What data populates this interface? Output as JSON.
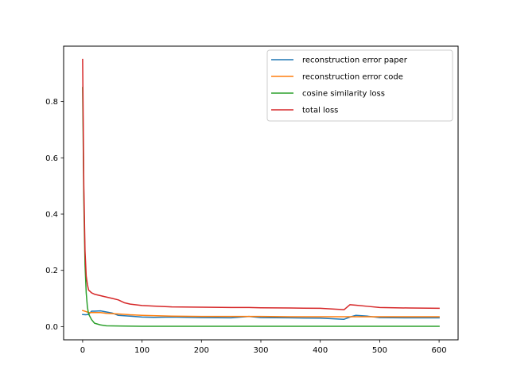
{
  "chart_data": {
    "type": "line",
    "title": "",
    "xlabel": "",
    "ylabel": "",
    "xlim": [
      -32,
      632
    ],
    "ylim": [
      -0.047,
      0.997
    ],
    "xticks": [
      0,
      100,
      200,
      300,
      400,
      500,
      600
    ],
    "yticks": [
      0.0,
      0.2,
      0.4,
      0.6,
      0.8
    ],
    "xtick_labels": [
      "0",
      "100",
      "200",
      "300",
      "400",
      "500",
      "600"
    ],
    "ytick_labels": [
      "0.0",
      "0.2",
      "0.4",
      "0.6",
      "0.8"
    ],
    "grid": false,
    "legend_position": "top-right",
    "series": [
      {
        "name": "reconstruction error paper",
        "color": "#1f77b4",
        "x": [
          0,
          5,
          10,
          15,
          20,
          30,
          40,
          50,
          60,
          80,
          100,
          120,
          150,
          200,
          250,
          280,
          300,
          350,
          400,
          440,
          450,
          460,
          480,
          500,
          550,
          600
        ],
        "y": [
          0.043,
          0.042,
          0.043,
          0.055,
          0.055,
          0.056,
          0.052,
          0.048,
          0.04,
          0.037,
          0.034,
          0.033,
          0.034,
          0.032,
          0.031,
          0.036,
          0.032,
          0.031,
          0.03,
          0.026,
          0.034,
          0.04,
          0.037,
          0.032,
          0.031,
          0.031
        ]
      },
      {
        "name": "reconstruction error code",
        "color": "#ff7f0e",
        "x": [
          0,
          5,
          10,
          20,
          30,
          40,
          60,
          80,
          100,
          150,
          200,
          250,
          300,
          350,
          400,
          450,
          500,
          550,
          600
        ],
        "y": [
          0.057,
          0.054,
          0.05,
          0.05,
          0.05,
          0.047,
          0.045,
          0.042,
          0.04,
          0.037,
          0.036,
          0.036,
          0.036,
          0.035,
          0.035,
          0.035,
          0.035,
          0.035,
          0.035
        ]
      },
      {
        "name": "cosine similarity loss",
        "color": "#2ca02c",
        "x": [
          0,
          2,
          4,
          6,
          8,
          10,
          15,
          20,
          30,
          40,
          60,
          100,
          200,
          300,
          400,
          500,
          600
        ],
        "y": [
          0.85,
          0.45,
          0.22,
          0.12,
          0.07,
          0.045,
          0.025,
          0.012,
          0.006,
          0.003,
          0.002,
          0.001,
          0.001,
          0.001,
          0.001,
          0.001,
          0.001
        ]
      },
      {
        "name": "total loss",
        "color": "#d62728",
        "x": [
          0,
          2,
          4,
          6,
          8,
          10,
          15,
          20,
          30,
          40,
          50,
          60,
          70,
          80,
          100,
          120,
          150,
          200,
          250,
          280,
          300,
          350,
          400,
          440,
          450,
          460,
          480,
          500,
          550,
          600
        ],
        "y": [
          0.95,
          0.5,
          0.27,
          0.18,
          0.15,
          0.13,
          0.12,
          0.115,
          0.11,
          0.105,
          0.1,
          0.095,
          0.085,
          0.08,
          0.075,
          0.073,
          0.07,
          0.069,
          0.068,
          0.068,
          0.067,
          0.066,
          0.065,
          0.06,
          0.078,
          0.076,
          0.072,
          0.068,
          0.066,
          0.065
        ]
      }
    ]
  }
}
